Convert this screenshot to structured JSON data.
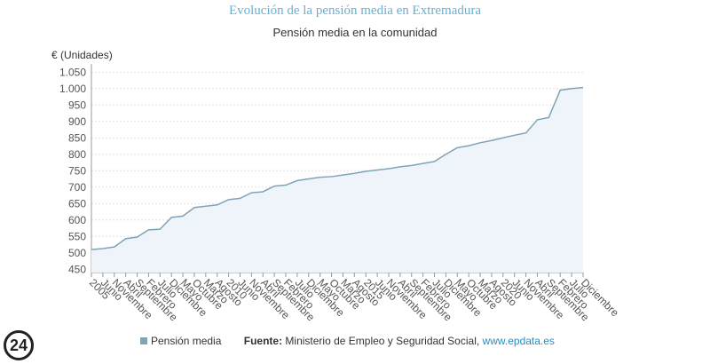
{
  "chart_data": {
    "type": "area",
    "title": "Evolución de la pensión media en Extremadura",
    "subtitle": "Pensión media en la comunidad",
    "y_label": "€ (Unidades)",
    "categories": [
      "2005",
      "Junio",
      "Noviembre",
      "Abril",
      "Septiembre",
      "Febrero",
      "Julio",
      "Diciembre",
      "Mayo",
      "Octubre",
      "Marzo",
      "Agosto",
      "2010",
      "Junio",
      "Noviembre",
      "Abril",
      "Septiembre",
      "Febrero",
      "Julio",
      "Diciembre",
      "Mayo",
      "Octubre",
      "Marzo",
      "Agosto",
      "2015",
      "Junio",
      "Noviembre",
      "Abril",
      "Septiembre",
      "Febrero",
      "Julio",
      "Diciembre",
      "Mayo",
      "Octubre",
      "Marzo",
      "Agosto",
      "2020",
      "Junio",
      "Noviembre",
      "Abril",
      "Septiembre",
      "Febrero",
      "Julio",
      "Diciembre"
    ],
    "series": [
      {
        "name": "Pensión media",
        "color": "#7fa3b8",
        "fill": "#eef4f9",
        "values": [
          510,
          513,
          518,
          543,
          548,
          570,
          572,
          608,
          612,
          638,
          642,
          646,
          662,
          666,
          683,
          686,
          703,
          706,
          720,
          725,
          730,
          732,
          737,
          742,
          748,
          752,
          756,
          762,
          766,
          772,
          778,
          800,
          820,
          826,
          835,
          842,
          850,
          858,
          865,
          905,
          912,
          995,
          1000,
          1003
        ]
      }
    ],
    "ylim": [
      440,
      1075
    ],
    "yticks": [
      450,
      500,
      550,
      600,
      650,
      700,
      750,
      800,
      850,
      900,
      950,
      {
        "value": 1000,
        "label": "1.000"
      },
      {
        "value": 1050,
        "label": "1.050"
      }
    ],
    "grid": true,
    "source_label": "Fuente:",
    "source_text": "Ministerio de Empleo y Seguridad Social,",
    "source_link": "www.epdata.es"
  },
  "logo": "24"
}
